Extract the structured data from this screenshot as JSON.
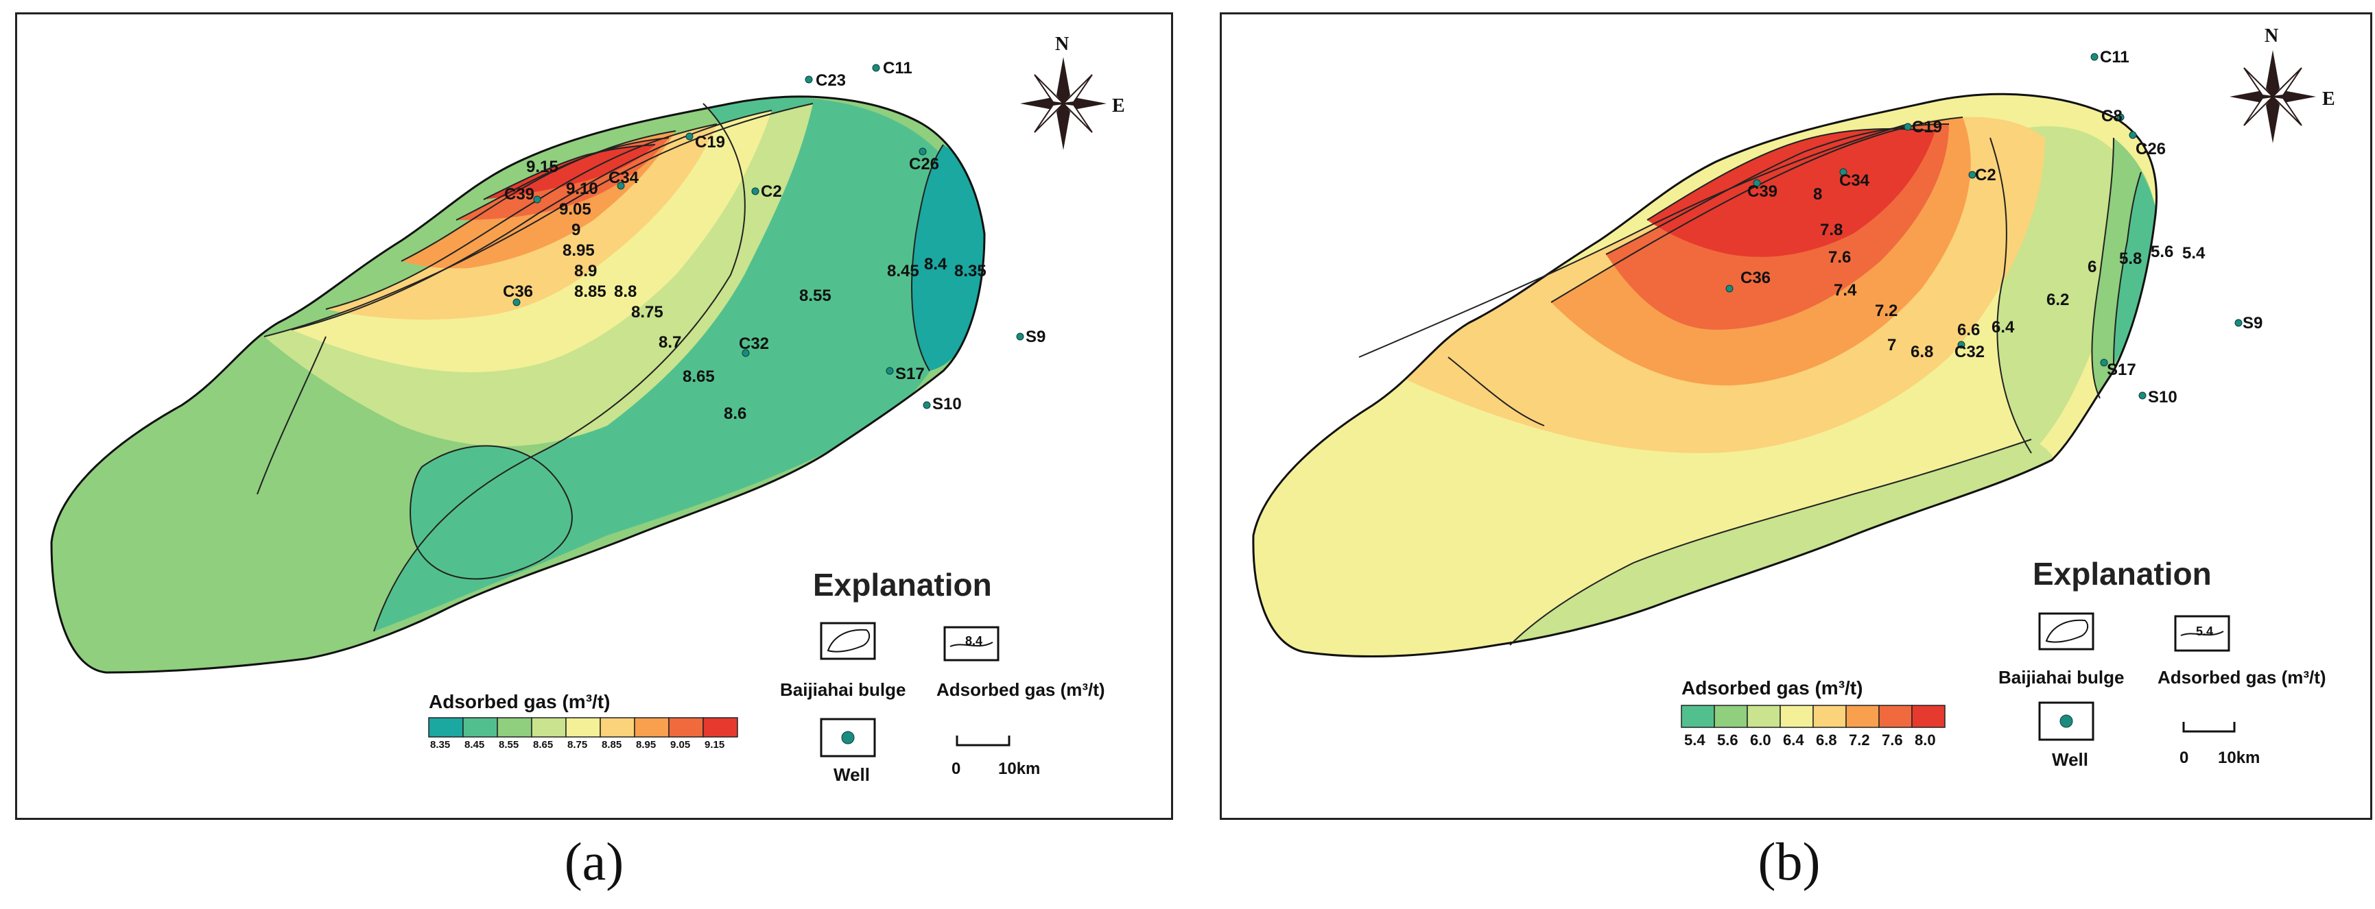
{
  "panels": [
    {
      "caption": "(a)",
      "compass": {
        "north": "N",
        "east": "E"
      },
      "legend": {
        "title": "Adsorbed gas (m³/t)",
        "colors": [
          "#1aa8a0",
          "#52c08e",
          "#8fcf7e",
          "#c9e38e",
          "#f3f098",
          "#fbd37a",
          "#f8a04e",
          "#f06a3e",
          "#e63a2e"
        ],
        "values": [
          "8.35",
          "8.45",
          "8.55",
          "8.65",
          "8.75",
          "8.85",
          "8.95",
          "9.05",
          "9.15"
        ]
      },
      "explanation": {
        "title": "Explanation",
        "bulge_label": "Baijiahai  bulge",
        "contour_label": "Adsorbed gas (m³/t)",
        "contour_sample": "8.4",
        "well_label": "Well",
        "scale_zero": "0",
        "scale_distance": "10km"
      },
      "wells": [
        "C23",
        "C11",
        "C19",
        "C34",
        "C39",
        "C2",
        "C26",
        "C36",
        "C32",
        "S17",
        "S9",
        "S10"
      ],
      "contour_labels": [
        "9.15",
        "9.10",
        "9.05",
        "9",
        "8.95",
        "8.9",
        "8.85",
        "8.8",
        "8.75",
        "8.7",
        "8.65",
        "8.6",
        "8.55",
        "8.45",
        "8.4",
        "8.35"
      ]
    },
    {
      "caption": "(b)",
      "compass": {
        "north": "N",
        "east": "E"
      },
      "legend": {
        "title": "Adsorbed gas (m³/t)",
        "colors": [
          "#52c08e",
          "#8fcf7e",
          "#c9e38e",
          "#f3f098",
          "#fbd37a",
          "#f8a04e",
          "#f06a3e",
          "#e63a2e"
        ],
        "values": [
          "5.4",
          "5.6",
          "6.0",
          "6.4",
          "6.8",
          "7.2",
          "7.6",
          "8.0"
        ]
      },
      "explanation": {
        "title": "Explanation",
        "bulge_label": "Baijiahai  bulge",
        "contour_label": "Adsorbed gas (m³/t)",
        "contour_sample": "5.4",
        "well_label": "Well",
        "scale_zero": "0",
        "scale_distance": "10km"
      },
      "wells": [
        "C11",
        "C8",
        "C19",
        "C26",
        "C34",
        "C39",
        "C2",
        "C36",
        "C32",
        "S17",
        "S9",
        "S10"
      ],
      "contour_labels": [
        "8",
        "7.8",
        "7.6",
        "7.4",
        "7.2",
        "7",
        "6.8",
        "6.6",
        "6.4",
        "6.2",
        "6",
        "5.8",
        "5.6",
        "5.4"
      ]
    }
  ]
}
